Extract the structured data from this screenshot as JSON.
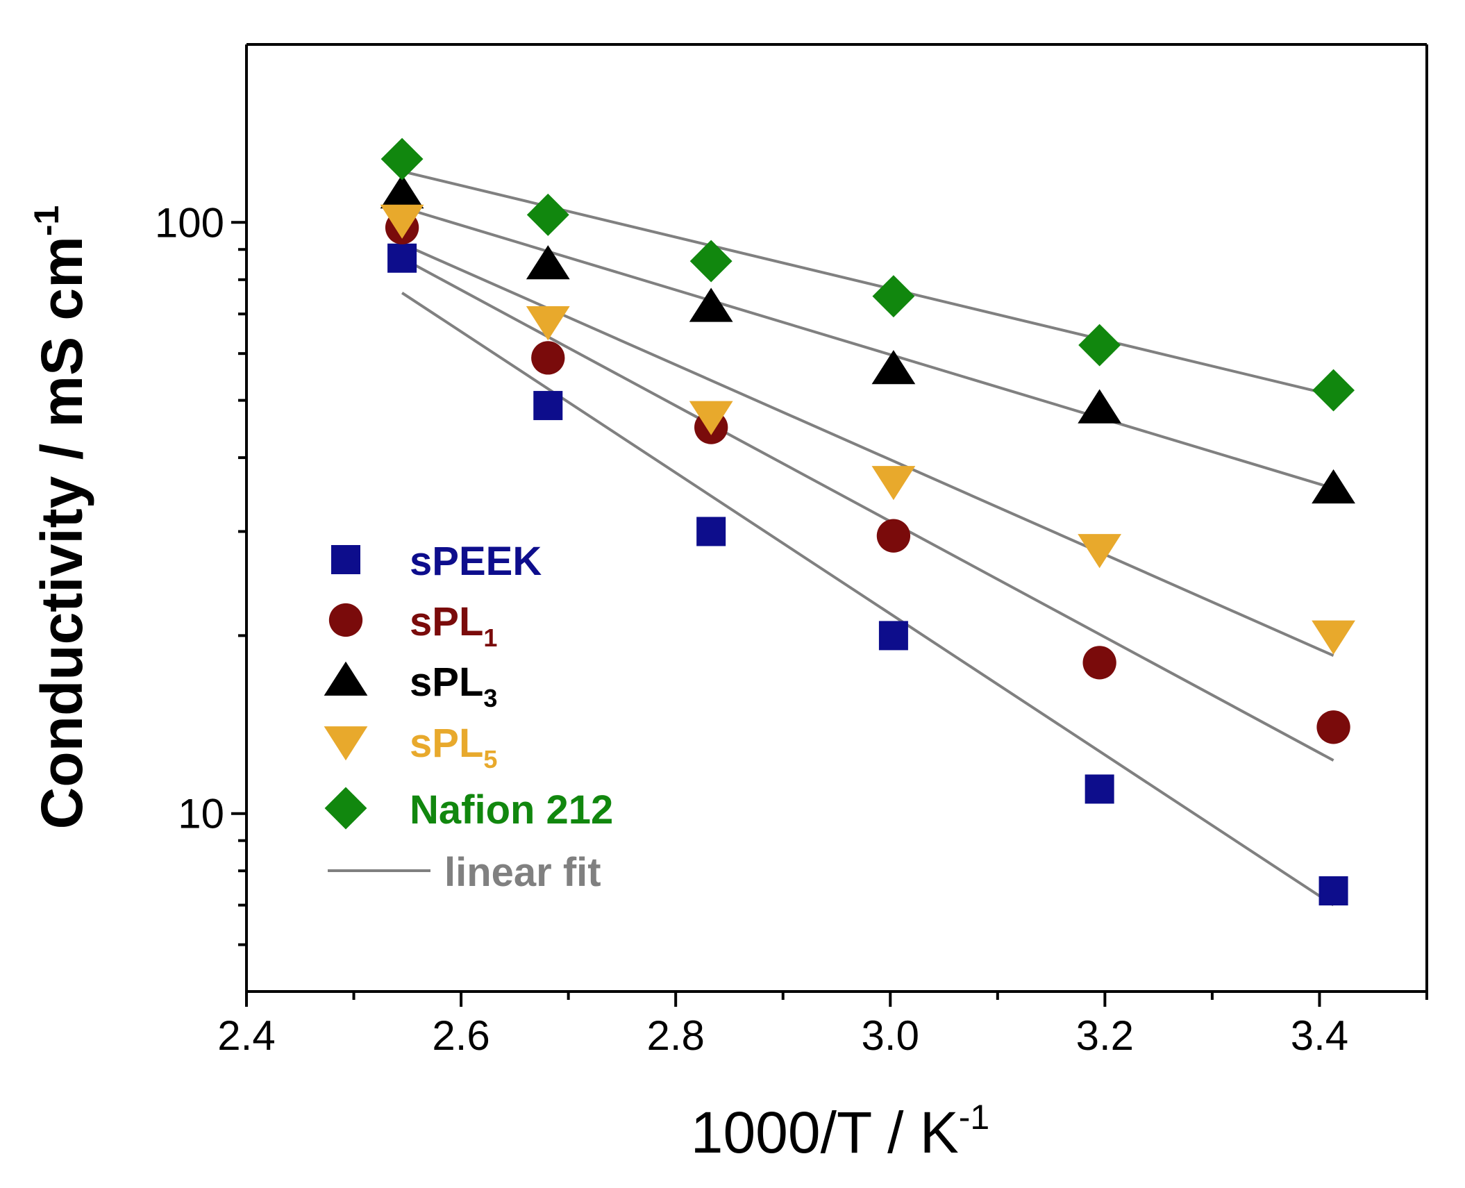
{
  "chart_data": {
    "type": "scatter",
    "title": "",
    "xlabel": "1000/T / K",
    "xlabel_sup": "-1",
    "ylabel": "Conductivity / mS cm",
    "ylabel_sup": "-1",
    "yscale": "log",
    "xlim": [
      2.4,
      3.5
    ],
    "ylim": [
      5,
      200
    ],
    "x_ticks": [
      2.4,
      2.6,
      2.8,
      3.0,
      3.2,
      3.4
    ],
    "x_tick_labels": [
      "2.4",
      "2.6",
      "2.8",
      "3.0",
      "3.2",
      "3.4"
    ],
    "x_minor_ticks": [
      2.5,
      2.7,
      2.9,
      3.1,
      3.3,
      3.5
    ],
    "y_major_ticks": [
      10,
      100
    ],
    "y_tick_labels": [
      "10",
      "100"
    ],
    "y_minor_ticks": [
      6,
      7,
      8,
      9,
      20,
      30,
      40,
      50,
      60,
      70,
      80,
      90
    ],
    "x": [
      2.545,
      2.681,
      2.833,
      3.003,
      3.195,
      3.413
    ],
    "series": [
      {
        "name": "sPEEK",
        "sub": "",
        "marker": "square",
        "color": "#0d0d8c",
        "values": [
          87,
          49,
          30,
          20,
          11,
          7.4
        ],
        "fit": [
          76,
          7.0
        ]
      },
      {
        "name": "sPL",
        "sub": "1",
        "marker": "circle",
        "color": "#7a0b0b",
        "values": [
          98,
          59,
          45,
          29.5,
          18,
          14
        ],
        "fit": [
          87,
          12.3
        ]
      },
      {
        "name": "sPL",
        "sub": "3",
        "marker": "triangle-up",
        "color": "#000000",
        "values": [
          112,
          85,
          72,
          56.5,
          48.5,
          35.5
        ],
        "fit": [
          106,
          35.5
        ]
      },
      {
        "name": "sPL",
        "sub": "5",
        "marker": "triangle-down",
        "color": "#e8a92c",
        "values": [
          101,
          68,
          47,
          36.5,
          28,
          20
        ],
        "fit": [
          92,
          18.5
        ]
      },
      {
        "name": "Nafion 212",
        "sub": "",
        "marker": "diamond",
        "color": "#11870e",
        "values": [
          128,
          103,
          86,
          75,
          62,
          52
        ],
        "fit": [
          122,
          51
        ]
      }
    ],
    "fit_label": "linear fit",
    "fit_color": "#808080",
    "legend_position": "lower-left"
  }
}
